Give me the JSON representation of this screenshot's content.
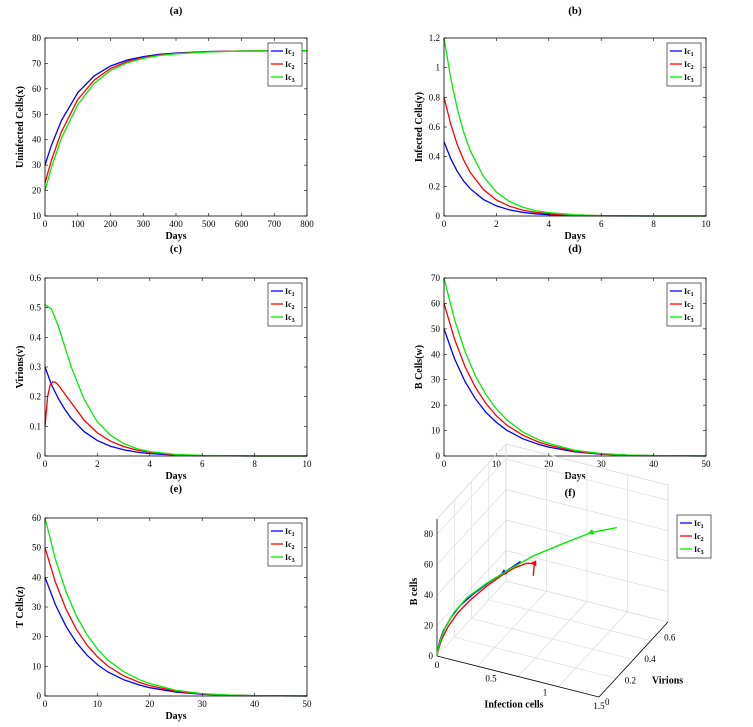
{
  "colors": {
    "ic1": "#0000ff",
    "ic2": "#ff0000",
    "ic3": "#00ee00"
  },
  "legend": {
    "base": "Ic",
    "subs": [
      "1",
      "2",
      "3"
    ]
  },
  "chart_data": [
    {
      "id": "a",
      "title": "(a)",
      "type": "line",
      "xlabel": "Days",
      "ylabel": "Uninfected Cells(x)",
      "xlim": [
        0,
        800
      ],
      "ylim": [
        10,
        80
      ],
      "xticks": [
        0,
        100,
        200,
        300,
        400,
        500,
        600,
        700,
        800
      ],
      "yticks": [
        10,
        20,
        30,
        40,
        50,
        60,
        70,
        80
      ],
      "series": [
        {
          "name": "Ic1",
          "color": "ic1",
          "x": [
            0,
            20,
            50,
            100,
            150,
            200,
            250,
            300,
            350,
            400,
            500,
            600,
            700,
            800
          ],
          "y": [
            30,
            37.9,
            47.5,
            58.5,
            65.1,
            69.0,
            71.3,
            72.7,
            73.6,
            74.1,
            74.7,
            74.9,
            74.97,
            75.0
          ]
        },
        {
          "name": "Ic2",
          "color": "ic2",
          "x": [
            0,
            20,
            50,
            100,
            150,
            200,
            250,
            300,
            350,
            400,
            500,
            600,
            700,
            800
          ],
          "y": [
            23,
            32.0,
            43.1,
            55.8,
            63.4,
            68.0,
            70.7,
            72.3,
            73.3,
            73.9,
            74.6,
            74.9,
            74.96,
            75.0
          ]
        },
        {
          "name": "Ic3",
          "color": "ic3",
          "x": [
            0,
            20,
            50,
            100,
            150,
            200,
            250,
            300,
            350,
            400,
            500,
            600,
            700,
            800
          ],
          "y": [
            20,
            29.1,
            40.6,
            53.8,
            62.1,
            67.2,
            70.2,
            72.0,
            73.1,
            73.8,
            74.5,
            74.85,
            74.95,
            75.0
          ]
        }
      ]
    },
    {
      "id": "b",
      "title": "(b)",
      "type": "line",
      "xlabel": "Days",
      "ylabel": "Infected Cells(y)",
      "xlim": [
        0,
        10
      ],
      "ylim": [
        0,
        1.2
      ],
      "xticks": [
        0,
        2,
        4,
        6,
        8,
        10
      ],
      "yticks": [
        0,
        0.2,
        0.4,
        0.6,
        0.8,
        1.0,
        1.2
      ],
      "yticklabels": [
        "0",
        "0.2",
        "0.4",
        "0.6",
        "0.8",
        "1",
        "1.2"
      ],
      "series": [
        {
          "name": "Ic1",
          "color": "ic1",
          "x": [
            0,
            0.25,
            0.5,
            0.75,
            1,
            1.5,
            2,
            2.5,
            3,
            3.5,
            4,
            5,
            6,
            8,
            10
          ],
          "y": [
            0.5,
            0.389,
            0.303,
            0.236,
            0.184,
            0.112,
            0.068,
            0.041,
            0.025,
            0.015,
            0.009,
            0.003,
            0.001,
            0,
            0
          ]
        },
        {
          "name": "Ic2",
          "color": "ic2",
          "x": [
            0,
            0.25,
            0.5,
            0.75,
            1,
            1.5,
            2,
            2.5,
            3,
            3.5,
            4,
            5,
            6,
            8,
            10
          ],
          "y": [
            0.8,
            0.623,
            0.485,
            0.378,
            0.294,
            0.179,
            0.108,
            0.066,
            0.04,
            0.024,
            0.015,
            0.005,
            0.002,
            0,
            0
          ]
        },
        {
          "name": "Ic3",
          "color": "ic3",
          "x": [
            0,
            0.25,
            0.5,
            0.75,
            1,
            1.5,
            2,
            2.5,
            3,
            3.5,
            4,
            5,
            6,
            8,
            10
          ],
          "y": [
            1.2,
            0.935,
            0.728,
            0.567,
            0.441,
            0.268,
            0.162,
            0.098,
            0.06,
            0.036,
            0.022,
            0.008,
            0.003,
            0,
            0
          ]
        }
      ]
    },
    {
      "id": "c",
      "title": "(c)",
      "type": "line",
      "xlabel": "Days",
      "ylabel": "Virions(v)",
      "xlim": [
        0,
        10
      ],
      "ylim": [
        0,
        0.6
      ],
      "xticks": [
        0,
        2,
        4,
        6,
        8,
        10
      ],
      "yticks": [
        0,
        0.1,
        0.2,
        0.3,
        0.4,
        0.5,
        0.6
      ],
      "series": [
        {
          "name": "Ic1",
          "color": "ic1",
          "x": [
            0,
            0.25,
            0.5,
            0.75,
            1,
            1.5,
            2,
            2.5,
            3,
            3.5,
            4,
            5,
            6,
            8,
            10
          ],
          "y": [
            0.3,
            0.24,
            0.195,
            0.158,
            0.127,
            0.082,
            0.052,
            0.033,
            0.021,
            0.013,
            0.008,
            0.003,
            0.001,
            0,
            0
          ]
        },
        {
          "name": "Ic2",
          "color": "ic2",
          "x": [
            0,
            0.1,
            0.2,
            0.3,
            0.4,
            0.5,
            0.75,
            1,
            1.5,
            2,
            2.5,
            3,
            3.5,
            4,
            5,
            6,
            8,
            10
          ],
          "y": [
            0.1,
            0.2,
            0.24,
            0.25,
            0.248,
            0.24,
            0.21,
            0.18,
            0.12,
            0.078,
            0.05,
            0.032,
            0.02,
            0.012,
            0.004,
            0.0015,
            0,
            0
          ]
        },
        {
          "name": "Ic3",
          "color": "ic3",
          "x": [
            0,
            0.25,
            0.5,
            0.75,
            1,
            1.5,
            2,
            2.5,
            3,
            3.5,
            4,
            5,
            6,
            8,
            10
          ],
          "y": [
            0.51,
            0.495,
            0.44,
            0.37,
            0.3,
            0.19,
            0.115,
            0.07,
            0.042,
            0.025,
            0.015,
            0.005,
            0.002,
            0,
            0
          ]
        }
      ]
    },
    {
      "id": "d",
      "title": "(d)",
      "type": "line",
      "xlabel": "Days",
      "ylabel": "B Cells(w)",
      "xlim": [
        0,
        50
      ],
      "ylim": [
        0,
        70
      ],
      "xticks": [
        0,
        10,
        20,
        30,
        40,
        50
      ],
      "yticks": [
        0,
        10,
        20,
        30,
        40,
        50,
        60,
        70
      ],
      "series": [
        {
          "name": "Ic1",
          "color": "ic1",
          "x": [
            0,
            2,
            4,
            6,
            8,
            10,
            12,
            15,
            18,
            20,
            25,
            30,
            35,
            40,
            50
          ],
          "y": [
            50,
            38.3,
            29.3,
            22.5,
            17.2,
            13.2,
            10.1,
            6.8,
            4.6,
            3.5,
            1.6,
            0.7,
            0.3,
            0.1,
            0
          ]
        },
        {
          "name": "Ic2",
          "color": "ic2",
          "x": [
            0,
            2,
            4,
            6,
            8,
            10,
            12,
            15,
            18,
            20,
            25,
            30,
            35,
            40,
            50
          ],
          "y": [
            60,
            46.0,
            35.2,
            27.0,
            20.7,
            15.8,
            12.1,
            8.2,
            5.5,
            4.2,
            1.9,
            0.8,
            0.35,
            0.15,
            0
          ]
        },
        {
          "name": "Ic3",
          "color": "ic3",
          "x": [
            0,
            2,
            4,
            6,
            8,
            10,
            12,
            15,
            18,
            20,
            25,
            30,
            35,
            40,
            50
          ],
          "y": [
            70,
            53.7,
            41.1,
            31.5,
            24.2,
            18.5,
            14.2,
            9.5,
            6.4,
            4.9,
            2.2,
            1.0,
            0.4,
            0.2,
            0
          ]
        }
      ]
    },
    {
      "id": "e",
      "title": "(e)",
      "type": "line",
      "xlabel": "Days",
      "ylabel": "T Cells(z)",
      "xlim": [
        0,
        50
      ],
      "ylim": [
        0,
        60
      ],
      "xticks": [
        0,
        10,
        20,
        30,
        40,
        50
      ],
      "yticks": [
        0,
        10,
        20,
        30,
        40,
        50,
        60
      ],
      "series": [
        {
          "name": "Ic1",
          "color": "ic1",
          "x": [
            0,
            2,
            4,
            6,
            8,
            10,
            12,
            15,
            18,
            20,
            25,
            30,
            35,
            40,
            50
          ],
          "y": [
            40,
            30.7,
            23.5,
            18.0,
            13.8,
            10.6,
            8.1,
            5.5,
            3.7,
            2.8,
            1.3,
            0.6,
            0.25,
            0.1,
            0
          ]
        },
        {
          "name": "Ic2",
          "color": "ic2",
          "x": [
            0,
            2,
            4,
            6,
            8,
            10,
            12,
            15,
            18,
            20,
            25,
            30,
            35,
            40,
            50
          ],
          "y": [
            50,
            38.3,
            29.3,
            22.5,
            17.2,
            13.2,
            10.1,
            6.8,
            4.6,
            3.5,
            1.6,
            0.7,
            0.3,
            0.1,
            0
          ]
        },
        {
          "name": "Ic3",
          "color": "ic3",
          "x": [
            0,
            2,
            4,
            6,
            8,
            10,
            12,
            15,
            18,
            20,
            25,
            30,
            35,
            40,
            50
          ],
          "y": [
            60,
            46.0,
            35.2,
            27.0,
            20.7,
            15.8,
            12.1,
            8.2,
            5.5,
            4.2,
            1.9,
            0.8,
            0.35,
            0.15,
            0
          ]
        }
      ]
    },
    {
      "id": "f",
      "title": "(f)",
      "type": "line3d",
      "xlabel": "Infection cells",
      "ylabel": "Virions",
      "zlabel": "B cells",
      "xlim": [
        0,
        1.5
      ],
      "ylim": [
        0,
        0.7
      ],
      "zlim": [
        0,
        90
      ],
      "xticks": [
        0,
        0.5,
        1,
        1.5
      ],
      "xticklabels": [
        "0",
        "0.5",
        "1",
        "1.5"
      ],
      "yticks": [
        0,
        0.2,
        0.4,
        0.6
      ],
      "yticklabels": [
        "0",
        "0.2",
        "0.4",
        "0.6"
      ],
      "zticks": [
        0,
        20,
        40,
        60,
        80
      ],
      "zticklabels": [
        "0",
        "20",
        "40",
        "60",
        "80"
      ],
      "series": [
        {
          "name": "Ic1",
          "color": "ic1",
          "x": [
            0.5,
            0.4,
            0.3,
            0.2,
            0.12,
            0.07,
            0.03,
            0.01,
            0.003,
            0.001,
            0
          ],
          "y": [
            0.3,
            0.24,
            0.19,
            0.14,
            0.1,
            0.065,
            0.035,
            0.017,
            0.006,
            0.002,
            0
          ],
          "z": [
            50,
            45,
            40,
            34,
            28,
            22,
            15,
            9,
            4,
            1.5,
            0
          ]
        },
        {
          "name": "Ic2",
          "color": "ic2",
          "x": [
            0.8,
            0.7,
            0.6,
            0.5,
            0.4,
            0.3,
            0.2,
            0.12,
            0.06,
            0.02,
            0.005,
            0
          ],
          "y": [
            0.1,
            0.22,
            0.25,
            0.24,
            0.21,
            0.17,
            0.12,
            0.08,
            0.045,
            0.02,
            0.005,
            0
          ],
          "z": [
            60,
            58,
            54,
            50,
            45,
            39,
            32,
            25,
            17,
            9,
            3,
            0
          ]
        },
        {
          "name": "Ic3",
          "color": "ic3",
          "x": [
            1.2,
            1.0,
            0.8,
            0.6,
            0.45,
            0.3,
            0.18,
            0.1,
            0.05,
            0.02,
            0.005,
            0
          ],
          "y": [
            0.51,
            0.47,
            0.4,
            0.32,
            0.24,
            0.17,
            0.11,
            0.065,
            0.035,
            0.015,
            0.004,
            0
          ],
          "z": [
            70,
            66,
            60,
            54,
            48,
            41,
            34,
            26,
            18,
            10,
            4,
            0
          ]
        }
      ]
    }
  ]
}
